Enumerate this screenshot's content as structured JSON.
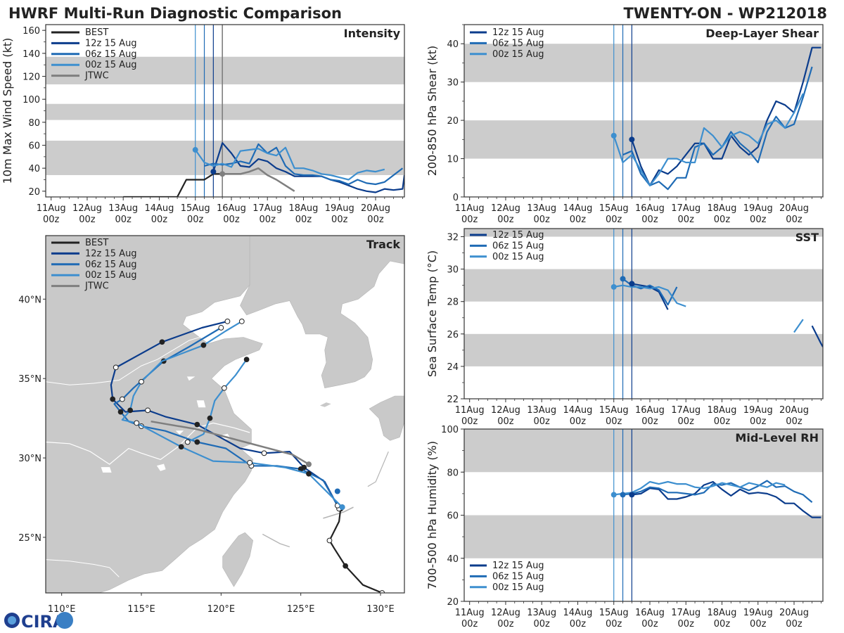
{
  "title_left": "HWRF Multi-Run Diagnostic Comparison",
  "title_right": "TWENTY-ON - WP212018",
  "logo_text": "CIRA",
  "colors": {
    "BEST": "#222222",
    "run12": "#0b3c8c",
    "run06": "#1f6bb5",
    "run00": "#3d8fcf",
    "JTWC": "#7f7f7f",
    "band": "#cccccc"
  },
  "run_markers": {
    "x": [
      15.0,
      15.25,
      15.5
    ],
    "colors": [
      "#3d8fcf",
      "#1f6bb5",
      "#0b3c8c"
    ]
  },
  "date_ticks": {
    "values": [
      11,
      12,
      13,
      14,
      15,
      16,
      17,
      18,
      19,
      20
    ],
    "labels": [
      "11Aug",
      "12Aug",
      "13Aug",
      "14Aug",
      "15Aug",
      "16Aug",
      "17Aug",
      "18Aug",
      "19Aug",
      "20Aug"
    ],
    "sub": "00z"
  },
  "chart_data": [
    {
      "id": "intensity",
      "type": "line",
      "title": "Intensity",
      "ylabel": "10m Max Wind Speed (kt)",
      "xlim": [
        10.85,
        20.8
      ],
      "ylim": [
        15,
        165
      ],
      "yticks": [
        20,
        40,
        60,
        80,
        100,
        120,
        140,
        160
      ],
      "bands": [
        [
          34,
          64
        ],
        [
          82,
          96
        ],
        [
          113,
          137
        ]
      ],
      "jtwc_x": 15.75,
      "legend": [
        "BEST",
        "12z 15 Aug",
        "06z 15 Aug",
        "00z 15 Aug",
        "JTWC"
      ],
      "series": [
        {
          "name": "BEST",
          "x": [
            13.0,
            13.25,
            13.5,
            13.75,
            14.0,
            14.25,
            14.5,
            14.75,
            15.0,
            15.25,
            15.5,
            15.75
          ],
          "y": [
            15,
            15,
            15,
            15,
            15,
            15,
            15,
            30,
            30,
            30,
            35,
            35
          ]
        },
        {
          "name": "12z 15 Aug",
          "x": [
            15.5,
            15.75,
            16.0,
            16.25,
            16.5,
            16.75,
            17.0,
            17.25,
            17.5,
            17.75,
            18.0,
            18.25,
            18.5,
            18.75,
            19.0,
            19.25,
            19.5,
            19.75,
            20.0,
            20.25,
            20.5,
            20.75,
            20.8
          ],
          "y": [
            37,
            62,
            53,
            42,
            41,
            48,
            46,
            40,
            37,
            33,
            33,
            33,
            33,
            30,
            28,
            25,
            22,
            20,
            19,
            22,
            21,
            22,
            34
          ]
        },
        {
          "name": "06z 15 Aug",
          "x": [
            15.25,
            15.5,
            15.75,
            16.0,
            16.25,
            16.5,
            16.75,
            17.0,
            17.25,
            17.5,
            17.75,
            18.0,
            18.25,
            18.5,
            18.75,
            19.0,
            19.25,
            19.5,
            19.75,
            20.0,
            20.25,
            20.5,
            20.75
          ],
          "y": [
            42,
            44,
            43,
            44,
            46,
            44,
            61,
            53,
            58,
            42,
            35,
            34,
            34,
            33,
            30,
            29,
            26,
            30,
            27,
            26,
            28,
            34,
            40
          ]
        },
        {
          "name": "00z 15 Aug",
          "x": [
            15.0,
            15.25,
            15.5,
            15.75,
            16.0,
            16.25,
            16.5,
            16.75,
            17.0,
            17.25,
            17.5,
            17.75,
            18.0,
            18.25,
            18.5,
            18.75,
            19.0,
            19.25,
            19.5,
            19.75,
            20.0,
            20.25
          ],
          "y": [
            56,
            45,
            42,
            44,
            41,
            55,
            56,
            57,
            53,
            51,
            58,
            40,
            40,
            38,
            35,
            34,
            32,
            30,
            36,
            38,
            37,
            39
          ]
        },
        {
          "name": "JTWC",
          "x": [
            15.75,
            16.0,
            16.25,
            16.5,
            16.75,
            17.0,
            17.25,
            17.5,
            17.75
          ],
          "y": [
            35,
            35,
            35,
            37,
            40,
            34,
            30,
            25,
            20
          ]
        }
      ],
      "points": [
        {
          "name": "00z 15 Aug",
          "x": 15.0,
          "y": 56
        },
        {
          "name": "12z 15 Aug",
          "x": 15.5,
          "y": 37
        },
        {
          "name": "JTWC",
          "x": 15.75,
          "y": 35
        }
      ]
    },
    {
      "id": "shear",
      "type": "line",
      "title": "Deep-Layer Shear",
      "ylabel": "200-850 hPa Shear (kt)",
      "xlim": [
        10.85,
        20.8
      ],
      "ylim": [
        0,
        45
      ],
      "yticks": [
        0,
        10,
        20,
        30,
        40
      ],
      "bands": [
        [
          10,
          20
        ],
        [
          30,
          40
        ]
      ],
      "legend": [
        "12z 15 Aug",
        "06z 15 Aug",
        "00z 15 Aug"
      ],
      "series": [
        {
          "name": "12z 15 Aug",
          "x": [
            15.5,
            15.75,
            16.0,
            16.25,
            16.5,
            16.75,
            17.0,
            17.25,
            17.5,
            17.75,
            18.0,
            18.25,
            18.5,
            18.75,
            19.0,
            19.25,
            19.5,
            19.75,
            20.0,
            20.25,
            20.5,
            20.75
          ],
          "y": [
            15,
            8,
            3,
            7,
            6,
            8,
            11,
            14,
            14,
            10,
            10,
            16,
            13,
            11,
            13,
            20,
            25,
            24,
            22,
            30,
            39,
            39
          ]
        },
        {
          "name": "06z 15 Aug",
          "x": [
            15.25,
            15.5,
            15.75,
            16.0,
            16.25,
            16.5,
            16.75,
            17.0,
            17.25,
            17.5,
            17.75,
            18.0,
            18.25,
            18.5,
            18.75,
            19.0,
            19.25,
            19.5,
            19.75,
            20.0,
            20.25,
            20.5
          ],
          "y": [
            11,
            12,
            6,
            3,
            4,
            2,
            5,
            5,
            13,
            14,
            11,
            13,
            17,
            14,
            12,
            9,
            17,
            21,
            18,
            19,
            26,
            34
          ]
        },
        {
          "name": "00z 15 Aug",
          "x": [
            15.0,
            15.25,
            15.5,
            15.75,
            16.0,
            16.25,
            16.5,
            16.75,
            17.0,
            17.25,
            17.5,
            17.75,
            18.0,
            18.25,
            18.5,
            18.75,
            19.0,
            19.25,
            19.5,
            19.75,
            20.0,
            20.25
          ],
          "y": [
            16,
            9,
            11,
            7,
            3,
            6,
            10,
            10,
            9,
            9,
            18,
            16,
            13,
            16,
            17,
            16,
            14,
            19,
            20,
            18,
            22,
            27
          ]
        }
      ],
      "points": [
        {
          "name": "00z 15 Aug",
          "x": 15.0,
          "y": 16
        },
        {
          "name": "12z 15 Aug",
          "x": 15.5,
          "y": 15
        }
      ]
    },
    {
      "id": "sst",
      "type": "line",
      "title": "SST",
      "ylabel": "Sea Surface Temp (°C)",
      "xlim": [
        10.85,
        20.8
      ],
      "ylim": [
        22,
        32.5
      ],
      "yticks": [
        22,
        24,
        26,
        28,
        30,
        32
      ],
      "bands": [
        [
          24,
          26
        ],
        [
          28,
          30
        ],
        [
          32,
          32.5
        ]
      ],
      "legend": [
        "12z 15 Aug",
        "06z 15 Aug",
        "00z 15 Aug"
      ],
      "series": [
        {
          "name": "12z 15 Aug",
          "x": [
            15.5,
            15.75,
            16.0,
            16.25,
            16.5
          ],
          "y": [
            29.1,
            29.0,
            28.9,
            28.6,
            27.5
          ]
        },
        {
          "name": "12z 15 Aug",
          "x": [
            20.5,
            20.75,
            20.8
          ],
          "y": [
            26.5,
            25.4,
            25.2
          ]
        },
        {
          "name": "06z 15 Aug",
          "x": [
            15.25,
            15.5,
            15.75,
            16.0,
            16.25,
            16.5,
            16.75
          ],
          "y": [
            29.4,
            29.0,
            28.8,
            29.0,
            28.7,
            27.8,
            28.9
          ]
        },
        {
          "name": "00z 15 Aug",
          "x": [
            15.0,
            15.25,
            15.5,
            15.75,
            16.0,
            16.25,
            16.5,
            16.75,
            17.0
          ],
          "y": [
            28.9,
            29.0,
            28.9,
            28.9,
            28.8,
            28.9,
            28.7,
            27.9,
            27.7
          ]
        },
        {
          "name": "00z 15 Aug",
          "x": [
            20.0,
            20.25
          ],
          "y": [
            26.1,
            26.9
          ]
        }
      ],
      "points": [
        {
          "name": "00z 15 Aug",
          "x": 15.0,
          "y": 28.9
        },
        {
          "name": "06z 15 Aug",
          "x": 15.25,
          "y": 29.4
        },
        {
          "name": "12z 15 Aug",
          "x": 15.5,
          "y": 29.1
        }
      ]
    },
    {
      "id": "rh",
      "type": "line",
      "title": "Mid-Level RH",
      "ylabel": "700-500 hPa Humidity (%)",
      "xlim": [
        10.85,
        20.8
      ],
      "ylim": [
        20,
        100
      ],
      "yticks": [
        20,
        40,
        60,
        80,
        100
      ],
      "bands": [
        [
          40,
          60
        ],
        [
          80,
          100
        ]
      ],
      "legend": [
        "12z 15 Aug",
        "06z 15 Aug",
        "00z 15 Aug"
      ],
      "series": [
        {
          "name": "12z 15 Aug",
          "x": [
            15.5,
            15.75,
            16.0,
            16.25,
            16.5,
            16.75,
            17.0,
            17.25,
            17.5,
            17.75,
            18.0,
            18.25,
            18.5,
            18.75,
            19.0,
            19.25,
            19.5,
            19.75,
            20.0,
            20.25,
            20.5,
            20.75
          ],
          "y": [
            69.5,
            70,
            72.5,
            72,
            67.5,
            67.5,
            68.5,
            70,
            74,
            75.5,
            72,
            69,
            72,
            70,
            70.5,
            70,
            68.5,
            65.5,
            65.5,
            62,
            59,
            59
          ]
        },
        {
          "name": "06z 15 Aug",
          "x": [
            15.25,
            15.5,
            15.75,
            16.0,
            16.25,
            16.5,
            16.75,
            17.0,
            17.25,
            17.5,
            17.75,
            18.0,
            18.25,
            18.5,
            18.75,
            19.0,
            19.25,
            19.5,
            19.75,
            20.0,
            20.25,
            20.5
          ],
          "y": [
            69.5,
            70,
            71,
            73,
            72.5,
            70.5,
            70.5,
            70,
            69.5,
            70.5,
            74.5,
            74,
            75,
            73,
            71.5,
            73.5,
            76,
            73,
            73.5,
            71,
            69.5,
            66
          ]
        },
        {
          "name": "00z 15 Aug",
          "x": [
            15.0,
            15.25,
            15.5,
            15.75,
            16.0,
            16.25,
            16.5,
            16.75,
            17.0,
            17.25,
            17.5,
            17.75,
            18.0,
            18.25,
            18.5,
            18.75,
            19.0,
            19.25,
            19.5,
            19.75
          ],
          "y": [
            69.5,
            70,
            70.5,
            72.5,
            75.5,
            74.5,
            75.5,
            74.5,
            74.5,
            73,
            72.5,
            73.5,
            75,
            74,
            73,
            75,
            74,
            73,
            75,
            74
          ]
        }
      ],
      "points": [
        {
          "name": "00z 15 Aug",
          "x": 15.0,
          "y": 69.5
        },
        {
          "name": "06z 15 Aug",
          "x": 15.25,
          "y": 69.5
        },
        {
          "name": "12z 15 Aug",
          "x": 15.5,
          "y": 69.5
        }
      ]
    },
    {
      "id": "track",
      "type": "scatter",
      "title": "Track",
      "lonlim": [
        109,
        131.5
      ],
      "latlim": [
        21.5,
        44
      ],
      "lon_ticks": [
        110,
        115,
        120,
        125,
        130
      ],
      "lon_labels": [
        "110°E",
        "115°E",
        "120°E",
        "125°E",
        "130°E"
      ],
      "lat_ticks": [
        25,
        30,
        35,
        40
      ],
      "lat_labels": [
        "25°N",
        "30°N",
        "35°N",
        "40°N"
      ],
      "legend": [
        "BEST",
        "12z 15 Aug",
        "06z 15 Aug",
        "00z 15 Aug",
        "JTWC"
      ],
      "series": [
        {
          "name": "BEST",
          "lon": [
            130.1,
            128.9,
            127.8,
            127.1,
            126.8,
            127.4,
            127.5,
            127.6
          ],
          "lat": [
            21.5,
            22.0,
            23.2,
            24.3,
            24.8,
            26.0,
            26.8,
            27.0
          ]
        },
        {
          "name": "12z 15 Aug",
          "lon": [
            127.4,
            126.5,
            125.2,
            124.3,
            122.7,
            121.2,
            118.5,
            116.5,
            115.4,
            114.0,
            113.2,
            113.1,
            113.4,
            113.6,
            116.3,
            118.8,
            120.4
          ],
          "lat": [
            26.8,
            28.5,
            29.4,
            30.4,
            30.3,
            30.6,
            32.1,
            32.6,
            33.0,
            32.9,
            33.7,
            34.6,
            35.7,
            35.8,
            37.3,
            38.2,
            38.6
          ]
        },
        {
          "name": "06z 15 Aug",
          "lon": [
            127.3,
            126.4,
            125.0,
            123.5,
            121.9,
            120.3,
            118.5,
            116.5,
            115.0,
            114.2,
            113.7,
            113.3,
            113.8,
            114.5,
            116.4,
            118.0,
            120.0
          ],
          "lat": [
            27.0,
            28.6,
            29.3,
            29.5,
            29.5,
            30.6,
            31.0,
            31.7,
            32.0,
            32.3,
            32.9,
            33.4,
            33.7,
            34.4,
            36.1,
            37.0,
            38.2
          ]
        },
        {
          "name": "00z 15 Aug",
          "lon": [
            127.6,
            126.5,
            125.5,
            124.0,
            121.8,
            119.5,
            117.5,
            116.0,
            114.7,
            113.8,
            114.3,
            114.5,
            115.0,
            116.3,
            118.9,
            120.3,
            121.3
          ],
          "lat": [
            26.9,
            28.0,
            29.0,
            29.4,
            29.7,
            29.8,
            30.7,
            31.5,
            32.2,
            32.4,
            33.0,
            33.9,
            34.8,
            36.1,
            37.1,
            38.0,
            38.6
          ]
        },
        {
          "name": "00z 15 Aug",
          "lon": [
            117.9,
            118.9,
            119.3,
            119.6,
            120.2,
            120.9,
            121.6
          ],
          "lat": [
            31.0,
            31.5,
            32.5,
            33.6,
            34.4,
            35.2,
            36.2
          ]
        },
        {
          "name": "JTWC",
          "lon": [
            115.6,
            118.5,
            121.5,
            124.5,
            125.5
          ],
          "lat": [
            32.3,
            31.8,
            31.0,
            30.2,
            29.6
          ]
        }
      ]
    }
  ]
}
